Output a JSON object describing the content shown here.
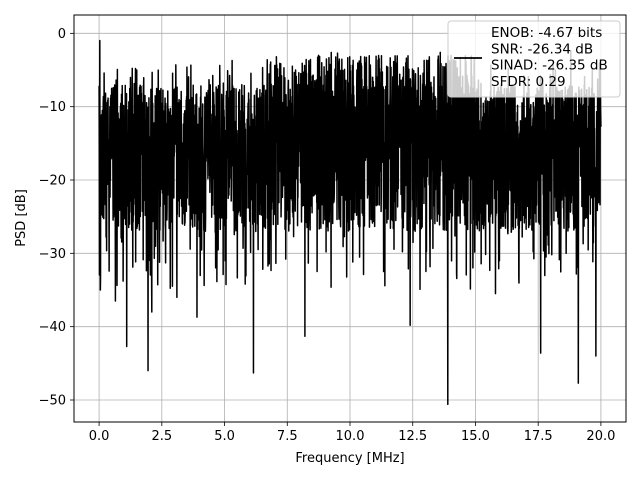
{
  "chart_data": {
    "type": "line",
    "xlabel": "Frequency [MHz]",
    "ylabel": "PSD [dB]",
    "xlim": [
      -1.0,
      21.0
    ],
    "ylim": [
      -53.0,
      2.5
    ],
    "xticks": [
      0.0,
      2.5,
      5.0,
      7.5,
      10.0,
      12.5,
      15.0,
      17.5,
      20.0
    ],
    "xtick_labels": [
      "0.0",
      "2.5",
      "5.0",
      "7.5",
      "10.0",
      "12.5",
      "15.0",
      "17.5",
      "20.0"
    ],
    "yticks": [
      0,
      -10,
      -20,
      -30,
      -40,
      -50
    ],
    "ytick_labels": [
      "0",
      "−10",
      "−20",
      "−30",
      "−40",
      "−50"
    ],
    "grid": true,
    "legend_position": "top-right",
    "line_color": "#000000",
    "series": [
      {
        "style": "noise-like PSD spectrum, dense oscillation",
        "x_range": [
          0.0,
          20.0
        ],
        "typical_band_db": [
          -25,
          -8
        ],
        "peaks": [
          {
            "x": 0.03,
            "y": -1.0
          },
          {
            "x": 1.45,
            "y": -4.8
          },
          {
            "x": 1.5,
            "y": -5.0
          },
          {
            "x": 3.5,
            "y": -4.6
          },
          {
            "x": 5.3,
            "y": -3.7
          },
          {
            "x": 6.7,
            "y": -3.6
          },
          {
            "x": 9.25,
            "y": -2.6
          },
          {
            "x": 9.5,
            "y": -2.7
          },
          {
            "x": 10.6,
            "y": -4.0
          },
          {
            "x": 13.6,
            "y": -2.6
          },
          {
            "x": 14.4,
            "y": -3.3
          },
          {
            "x": 18.8,
            "y": -2.4
          }
        ],
        "dips": [
          {
            "x": 0.05,
            "y": -35.0
          },
          {
            "x": 0.65,
            "y": -36.5
          },
          {
            "x": 1.1,
            "y": -42.7
          },
          {
            "x": 1.95,
            "y": -46.0
          },
          {
            "x": 2.1,
            "y": -38.0
          },
          {
            "x": 3.1,
            "y": -36.0
          },
          {
            "x": 3.9,
            "y": -38.7
          },
          {
            "x": 6.15,
            "y": -46.3
          },
          {
            "x": 8.2,
            "y": -41.3
          },
          {
            "x": 12.4,
            "y": -39.8
          },
          {
            "x": 13.9,
            "y": -50.6
          },
          {
            "x": 15.8,
            "y": -35.5
          },
          {
            "x": 17.6,
            "y": -43.6
          },
          {
            "x": 19.1,
            "y": -47.7
          },
          {
            "x": 19.8,
            "y": -44.0
          }
        ]
      }
    ],
    "legend": {
      "line_sample": true,
      "lines": [
        "ENOB: -4.67 bits",
        "SNR: -26.34 dB",
        "SINAD: -26.35 dB",
        "SFDR: 0.29"
      ]
    }
  }
}
